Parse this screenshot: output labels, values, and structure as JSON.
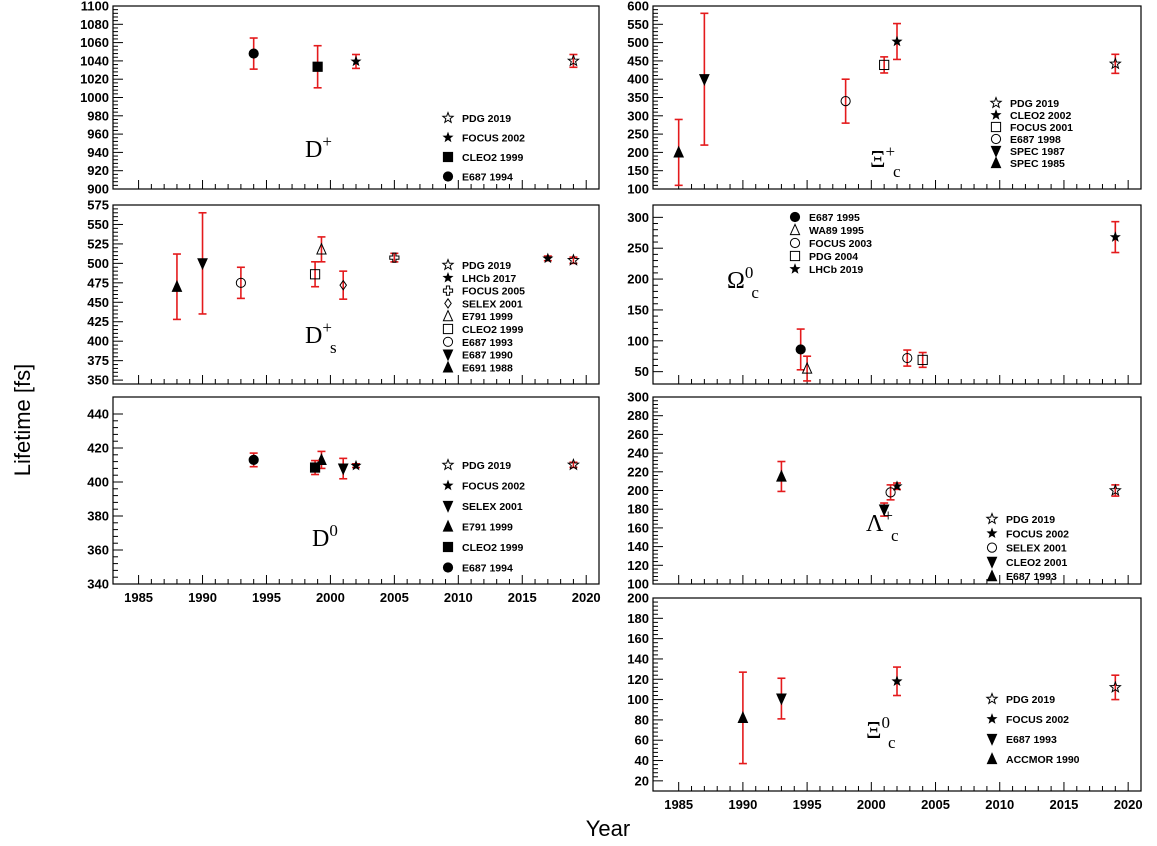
{
  "figure": {
    "ylabel": "Lifetime [fs]",
    "xlabel": "Year"
  },
  "chart_data": [
    {
      "type": "scatter",
      "title": "D+",
      "label_main": "D",
      "label_sup": "+",
      "label_sub": "",
      "xlim": [
        1983,
        2021
      ],
      "ylim": [
        900,
        1100
      ],
      "yticks": [
        900,
        920,
        940,
        960,
        980,
        1000,
        1020,
        1040,
        1060,
        1080,
        1100
      ],
      "xticks": [],
      "show_xticklabels": false,
      "series": [
        {
          "name": "PDG 2019",
          "marker": "star-open",
          "points": [
            {
              "x": 2019,
              "y": 1040,
              "err": 7
            }
          ]
        },
        {
          "name": "FOCUS 2002",
          "marker": "star",
          "points": [
            {
              "x": 2002,
              "y": 1039.4,
              "err": 7.6
            }
          ]
        },
        {
          "name": "CLEO2 1999",
          "marker": "square",
          "points": [
            {
              "x": 1999,
              "y": 1033.6,
              "err": 23
            }
          ]
        },
        {
          "name": "E687 1994",
          "marker": "circle",
          "points": [
            {
              "x": 1994,
              "y": 1048,
              "err": 17
            }
          ]
        }
      ]
    },
    {
      "type": "scatter",
      "title": "Xi+c",
      "label_main": "Ξ",
      "label_sup": "+",
      "label_sub": "c",
      "xlim": [
        1983,
        2021
      ],
      "ylim": [
        100,
        600
      ],
      "yticks": [
        100,
        150,
        200,
        250,
        300,
        350,
        400,
        450,
        500,
        550,
        600
      ],
      "xticks": [],
      "show_xticklabels": false,
      "series": [
        {
          "name": "PDG 2019",
          "marker": "star-open",
          "points": [
            {
              "x": 2019,
              "y": 442,
              "err": 26
            }
          ]
        },
        {
          "name": "CLEO2 2002",
          "marker": "star",
          "points": [
            {
              "x": 2002,
              "y": 503,
              "err": 49
            }
          ]
        },
        {
          "name": "FOCUS 2001",
          "marker": "square-open",
          "points": [
            {
              "x": 2001,
              "y": 439,
              "err": 22
            }
          ]
        },
        {
          "name": "E687 1998",
          "marker": "circle-open",
          "points": [
            {
              "x": 1998,
              "y": 340,
              "err": 60
            }
          ]
        },
        {
          "name": "SPEC 1987",
          "marker": "tri-down",
          "points": [
            {
              "x": 1987,
              "y": 400,
              "err": 180
            }
          ]
        },
        {
          "name": "SPEC 1985",
          "marker": "tri-up",
          "points": [
            {
              "x": 1985,
              "y": 200,
              "err": 90
            }
          ]
        }
      ]
    },
    {
      "type": "scatter",
      "title": "D+s",
      "label_main": "D",
      "label_sup": "+",
      "label_sub": "s",
      "xlim": [
        1983,
        2021
      ],
      "ylim": [
        345,
        575
      ],
      "yticks": [
        350,
        375,
        400,
        425,
        450,
        475,
        500,
        525,
        550,
        575
      ],
      "xticks": [],
      "show_xticklabels": false,
      "series": [
        {
          "name": "PDG 2019",
          "marker": "star-open",
          "points": [
            {
              "x": 2019,
              "y": 504,
              "err": 4
            }
          ]
        },
        {
          "name": "LHCb 2017",
          "marker": "star",
          "points": [
            {
              "x": 2017,
              "y": 506.4,
              "err": 3
            }
          ]
        },
        {
          "name": "FOCUS 2005",
          "marker": "cross-open",
          "points": [
            {
              "x": 2005,
              "y": 507.4,
              "err": 5.5
            }
          ]
        },
        {
          "name": "SELEX 2001",
          "marker": "diamond-open",
          "points": [
            {
              "x": 2001,
              "y": 472,
              "err": 18
            }
          ]
        },
        {
          "name": "E791 1999",
          "marker": "tri-up-open",
          "points": [
            {
              "x": 1999.3,
              "y": 518,
              "err": 16
            }
          ]
        },
        {
          "name": "CLEO2 1999",
          "marker": "square-open",
          "points": [
            {
              "x": 1998.8,
              "y": 486,
              "err": 16
            }
          ]
        },
        {
          "name": "E687 1993",
          "marker": "circle-open",
          "points": [
            {
              "x": 1993,
              "y": 475,
              "err": 20
            }
          ]
        },
        {
          "name": "E687 1990",
          "marker": "tri-down",
          "points": [
            {
              "x": 1990,
              "y": 500,
              "err": 65
            }
          ]
        },
        {
          "name": "E691 1988",
          "marker": "tri-up",
          "points": [
            {
              "x": 1988,
              "y": 470,
              "err": 42
            }
          ]
        }
      ]
    },
    {
      "type": "scatter",
      "title": "Omega0c",
      "label_main": "Ω",
      "label_sup": "0",
      "label_sub": "c",
      "xlim": [
        1983,
        2021
      ],
      "ylim": [
        30,
        320
      ],
      "yticks": [
        50,
        100,
        150,
        200,
        250,
        300
      ],
      "xticks": [],
      "show_xticklabels": false,
      "series": [
        {
          "name": "E687 1995",
          "marker": "circle",
          "points": [
            {
              "x": 1994.5,
              "y": 86,
              "err": 33
            }
          ]
        },
        {
          "name": "WA89 1995",
          "marker": "tri-up-open",
          "points": [
            {
              "x": 1995,
              "y": 55,
              "err": 20
            }
          ]
        },
        {
          "name": "FOCUS 2003",
          "marker": "circle-open",
          "points": [
            {
              "x": 2002.8,
              "y": 72,
              "err": 13
            }
          ]
        },
        {
          "name": "PDG 2004",
          "marker": "square-open",
          "points": [
            {
              "x": 2004,
              "y": 69,
              "err": 12
            }
          ]
        },
        {
          "name": "LHCb 2019",
          "marker": "star",
          "points": [
            {
              "x": 2019,
              "y": 268,
              "err": 25
            }
          ]
        }
      ]
    },
    {
      "type": "scatter",
      "title": "D0",
      "label_main": "D",
      "label_sup": "0",
      "label_sub": "",
      "xlim": [
        1983,
        2021
      ],
      "ylim": [
        340,
        450
      ],
      "yticks": [
        340,
        360,
        380,
        400,
        420,
        440
      ],
      "xticks": [
        1985,
        1990,
        1995,
        2000,
        2005,
        2010,
        2015,
        2020
      ],
      "show_xticklabels": true,
      "series": [
        {
          "name": "PDG 2019",
          "marker": "star-open",
          "points": [
            {
              "x": 2019,
              "y": 410.1,
              "err": 1.5
            }
          ]
        },
        {
          "name": "FOCUS 2002",
          "marker": "star",
          "points": [
            {
              "x": 2002,
              "y": 409.6,
              "err": 1.1
            }
          ]
        },
        {
          "name": "SELEX 2001",
          "marker": "tri-down",
          "points": [
            {
              "x": 2001,
              "y": 407.9,
              "err": 6
            }
          ]
        },
        {
          "name": "E791 1999",
          "marker": "tri-up",
          "points": [
            {
              "x": 1999.3,
              "y": 413,
              "err": 5
            }
          ]
        },
        {
          "name": "CLEO2 1999",
          "marker": "square",
          "points": [
            {
              "x": 1998.8,
              "y": 408.5,
              "err": 4.1
            }
          ]
        },
        {
          "name": "E687 1994",
          "marker": "circle",
          "points": [
            {
              "x": 1994,
              "y": 413,
              "err": 4
            }
          ]
        }
      ]
    },
    {
      "type": "scatter",
      "title": "Lambda+c",
      "label_main": "Λ",
      "label_sup": "+",
      "label_sub": "c",
      "xlim": [
        1983,
        2021
      ],
      "ylim": [
        100,
        300
      ],
      "yticks": [
        100,
        120,
        140,
        160,
        180,
        200,
        220,
        240,
        260,
        280,
        300
      ],
      "xticks": [],
      "show_xticklabels": false,
      "series": [
        {
          "name": "PDG 2019",
          "marker": "star-open",
          "points": [
            {
              "x": 2019,
              "y": 200,
              "err": 6
            }
          ]
        },
        {
          "name": "FOCUS 2002",
          "marker": "star",
          "points": [
            {
              "x": 2002,
              "y": 204.6,
              "err": 3.4
            }
          ]
        },
        {
          "name": "SELEX 2001",
          "marker": "circle-open",
          "points": [
            {
              "x": 2001.5,
              "y": 198,
              "err": 8
            }
          ]
        },
        {
          "name": "CLEO2 2001",
          "marker": "tri-down",
          "points": [
            {
              "x": 2001,
              "y": 179.6,
              "err": 7
            }
          ]
        },
        {
          "name": "E687 1993",
          "marker": "tri-up",
          "points": [
            {
              "x": 1993,
              "y": 215,
              "err": 16
            }
          ]
        }
      ]
    },
    {
      "type": "scatter",
      "title": "Xi0c",
      "label_main": "Ξ",
      "label_sup": "0",
      "label_sub": "c",
      "xlim": [
        1983,
        2021
      ],
      "ylim": [
        10,
        200
      ],
      "yticks": [
        20,
        40,
        60,
        80,
        100,
        120,
        140,
        160,
        180,
        200
      ],
      "xticks": [
        1985,
        1990,
        1995,
        2000,
        2005,
        2010,
        2015,
        2020
      ],
      "show_xticklabels": true,
      "series": [
        {
          "name": "PDG 2019",
          "marker": "star-open",
          "points": [
            {
              "x": 2019,
              "y": 112,
              "err": 12
            }
          ]
        },
        {
          "name": "FOCUS 2002",
          "marker": "star",
          "points": [
            {
              "x": 2002,
              "y": 118,
              "err": 14
            }
          ]
        },
        {
          "name": "E687 1993",
          "marker": "tri-down",
          "points": [
            {
              "x": 1993,
              "y": 101,
              "err": 20
            }
          ]
        },
        {
          "name": "ACCMOR 1990",
          "marker": "tri-up",
          "points": [
            {
              "x": 1990,
              "y": 82,
              "err": 45
            }
          ]
        }
      ]
    }
  ]
}
